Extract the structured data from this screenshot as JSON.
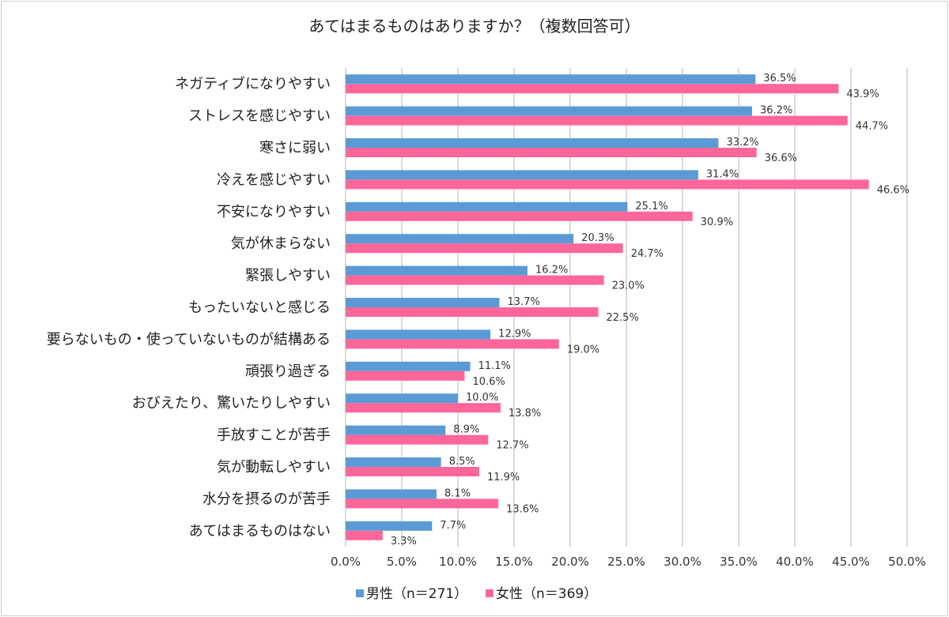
{
  "chart_data": {
    "type": "bar",
    "orientation": "horizontal",
    "title": "あてはまるものはありますか？（複数回答可）",
    "categories": [
      "ネガティブになりやすい",
      "ストレスを感じやすい",
      "寒さに弱い",
      "冷えを感じやすい",
      "不安になりやすい",
      "気が休まらない",
      "緊張しやすい",
      "もったいないと感じる",
      "要らないもの・使っていないものが結構ある",
      "頑張り過ぎる",
      "おびえたり、驚いたりしやすい",
      "手放すことが苦手",
      "気が動転しやすい",
      "水分を摂るのが苦手",
      "あてはまるものはない"
    ],
    "series": [
      {
        "name": "男性（n＝271）",
        "color": "#5b9bd5",
        "values": [
          36.5,
          36.2,
          33.2,
          31.4,
          25.1,
          20.3,
          16.2,
          13.7,
          12.9,
          11.1,
          10.0,
          8.9,
          8.5,
          8.1,
          7.7
        ],
        "labels": [
          "36.5%",
          "36.2%",
          "33.2%",
          "31.4%",
          "25.1%",
          "20.3%",
          "16.2%",
          "13.7%",
          "12.9%",
          "11.1%",
          "10.0%",
          "8.9%",
          "8.5%",
          "8.1%",
          "7.7%"
        ]
      },
      {
        "name": "女性（n＝369）",
        "color": "#ff6699",
        "values": [
          43.9,
          44.7,
          36.6,
          46.6,
          30.9,
          24.7,
          23.0,
          22.5,
          19.0,
          10.6,
          13.8,
          12.7,
          11.9,
          13.6,
          3.3
        ],
        "labels": [
          "43.9%",
          "44.7%",
          "36.6%",
          "46.6%",
          "30.9%",
          "24.7%",
          "23.0%",
          "22.5%",
          "19.0%",
          "10.6%",
          "13.8%",
          "12.7%",
          "11.9%",
          "13.6%",
          "3.3%"
        ]
      }
    ],
    "xlim": [
      0,
      50
    ],
    "xticks": [
      0,
      5,
      10,
      15,
      20,
      25,
      30,
      35,
      40,
      45,
      50
    ],
    "xtick_labels": [
      "0.0%",
      "5.0%",
      "10.0%",
      "15.0%",
      "20.0%",
      "25.0%",
      "30.0%",
      "35.0%",
      "40.0%",
      "45.0%",
      "50.0%"
    ],
    "grid": "vertical",
    "legend": "bottom"
  }
}
